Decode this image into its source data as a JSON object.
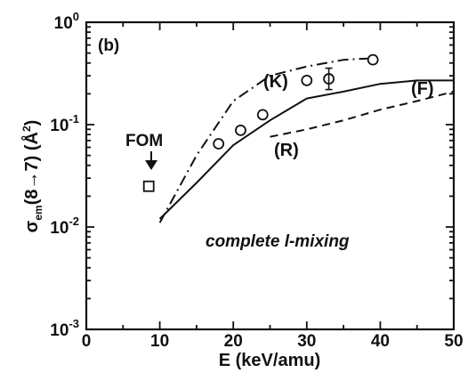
{
  "chart_data": {
    "type": "line",
    "panel_label": "(b)",
    "xlabel": "E (keV/amu)",
    "ylabel_main": "σ",
    "ylabel_sub": "em",
    "ylabel_rest": "(8→7) (Å",
    "ylabel_sup": "2",
    "ylabel_end": ")",
    "xlim": [
      0,
      50
    ],
    "ylim": [
      0.001,
      1
    ],
    "yscale": "log",
    "x_ticks": [
      "0",
      "10",
      "20",
      "30",
      "40",
      "50"
    ],
    "y_ticks": [
      {
        "value": 1,
        "base": "10",
        "exp": "0"
      },
      {
        "value": 0.1,
        "base": "10",
        "exp": "-1"
      },
      {
        "value": 0.01,
        "base": "10",
        "exp": "-2"
      },
      {
        "value": 0.001,
        "base": "10",
        "exp": "-3"
      }
    ],
    "annotation": "complete l-mixing",
    "series": [
      {
        "name": "(K)",
        "style": "dash-dot",
        "x": [
          10,
          15,
          20,
          25,
          30,
          35,
          40
        ],
        "y": [
          0.011,
          0.05,
          0.17,
          0.3,
          0.37,
          0.43,
          0.45
        ]
      },
      {
        "name": "(F)",
        "style": "solid",
        "x": [
          10,
          15,
          20,
          25,
          30,
          35,
          40,
          45,
          50
        ],
        "y": [
          0.012,
          0.027,
          0.063,
          0.11,
          0.18,
          0.21,
          0.25,
          0.27,
          0.27
        ]
      },
      {
        "name": "(R)",
        "style": "dashed",
        "x": [
          25,
          30,
          35,
          40,
          45,
          50
        ],
        "y": [
          0.076,
          0.09,
          0.11,
          0.14,
          0.17,
          0.21
        ]
      },
      {
        "name": "",
        "style": "circles",
        "x": [
          18,
          21,
          24,
          30,
          33,
          39
        ],
        "y": [
          0.065,
          0.088,
          0.125,
          0.27,
          0.28,
          0.43
        ]
      },
      {
        "name": "FOM",
        "style": "square",
        "x": [
          8.5
        ],
        "y": [
          0.025
        ]
      }
    ]
  }
}
